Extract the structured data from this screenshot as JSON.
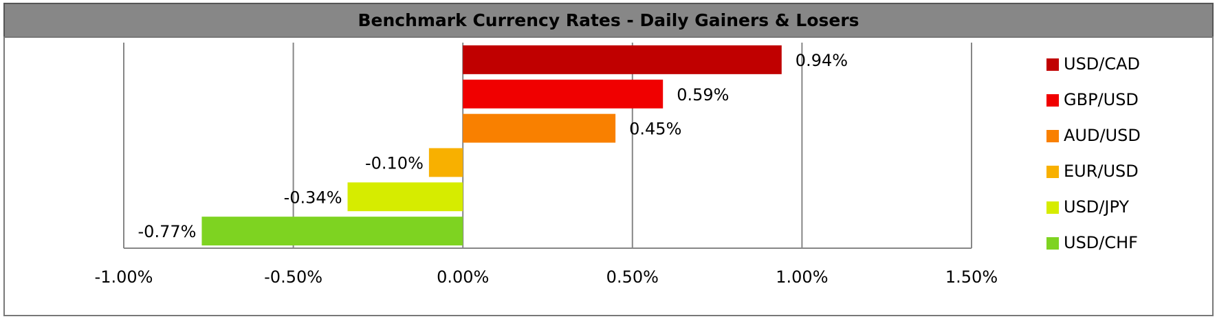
{
  "chart_data": {
    "type": "bar",
    "orientation": "horizontal",
    "title": "Benchmark Currency Rates - Daily Gainers & Losers",
    "categories": [
      "USD/CAD",
      "GBP/USD",
      "AUD/USD",
      "EUR/USD",
      "USD/JPY",
      "USD/CHF"
    ],
    "values": [
      0.94,
      0.59,
      0.45,
      -0.1,
      -0.34,
      -0.77
    ],
    "value_labels": [
      "0.94%",
      "0.59%",
      "0.45%",
      "-0.10%",
      "-0.34%",
      "-0.77%"
    ],
    "colors": [
      "#c00000",
      "#f00000",
      "#f98000",
      "#f8b000",
      "#d6ec00",
      "#7ed321"
    ],
    "xlim": [
      -1,
      1.5
    ],
    "xticks": [
      {
        "value": -1,
        "label": "-1.00%"
      },
      {
        "value": -0.5,
        "label": "-0.50%"
      },
      {
        "value": 0,
        "label": "0.00%"
      },
      {
        "value": 0.5,
        "label": "0.50%"
      },
      {
        "value": 1,
        "label": "1.00%"
      },
      {
        "value": 1.5,
        "label": "1.50%"
      }
    ],
    "grid": true,
    "legend": "right"
  }
}
